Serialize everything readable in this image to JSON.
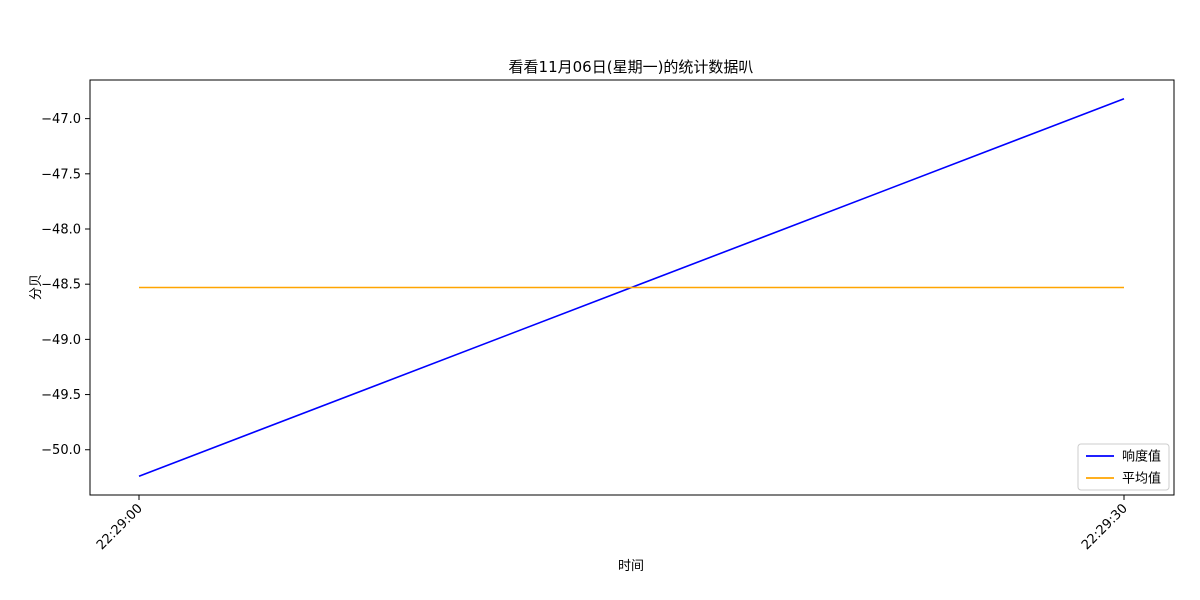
{
  "chart_data": {
    "type": "line",
    "title": "看看11月06日(星期一)的统计数据叭",
    "xlabel": "时间",
    "ylabel": "分贝",
    "x": [
      "22:29:00",
      "22:29:30"
    ],
    "series": [
      {
        "name": "响度值",
        "values": [
          -50.24,
          -46.82
        ],
        "color": "#0000ff"
      },
      {
        "name": "平均值",
        "values": [
          -48.53,
          -48.53
        ],
        "color": "#ffa500"
      }
    ],
    "yticks": [
      -50.0,
      -49.5,
      -49.0,
      -48.5,
      -48.0,
      -47.5,
      -47.0
    ],
    "ytick_labels": [
      "−50.0",
      "−49.5",
      "−49.0",
      "−48.5",
      "−48.0",
      "−47.5",
      "−47.0"
    ],
    "ylim": [
      -50.41,
      -46.65
    ],
    "legend": "lower-right",
    "grid": false
  }
}
